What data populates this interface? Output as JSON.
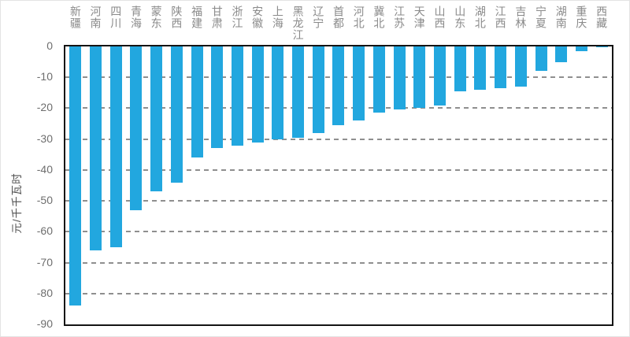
{
  "chart_data": {
    "type": "bar",
    "title": "",
    "xlabel": "",
    "ylabel": "元/千千瓦时",
    "ylim": [
      -90,
      0
    ],
    "ytick_interval": 10,
    "ytick_labels": [
      "0",
      "-10",
      "-20",
      "-30",
      "-40",
      "-50",
      "-60",
      "-70",
      "-80",
      "-90"
    ],
    "grid": "horizontal dashed",
    "legend": "none",
    "category_label_position": "top vertical",
    "categories": [
      "新疆",
      "河南",
      "四川",
      "青海",
      "蒙东",
      "陕西",
      "福建",
      "甘肃",
      "浙江",
      "安徽",
      "上海",
      "黑龙江",
      "辽宁",
      "首都",
      "河北",
      "冀北",
      "江苏",
      "天津",
      "山西",
      "山东",
      "湖北",
      "江西",
      "吉林",
      "宁夏",
      "湖南",
      "重庆",
      "西藏"
    ],
    "values": [
      -84,
      -66,
      -65,
      -53,
      -47,
      -44,
      -36,
      -33,
      -32,
      -31,
      -30,
      -29.5,
      -28,
      -25.5,
      -24,
      -21.5,
      -20.5,
      -20,
      -19,
      -14.5,
      -14,
      -13.5,
      -13,
      -8,
      -5,
      -1.5,
      -0.3
    ]
  },
  "colors": {
    "bar": "#22A7DF",
    "axis_border": "#141414",
    "gridline": "#8f8f8f",
    "category_label": "#8a8a8a",
    "tick_label": "#6e6e6e",
    "background": "#ffffff"
  }
}
